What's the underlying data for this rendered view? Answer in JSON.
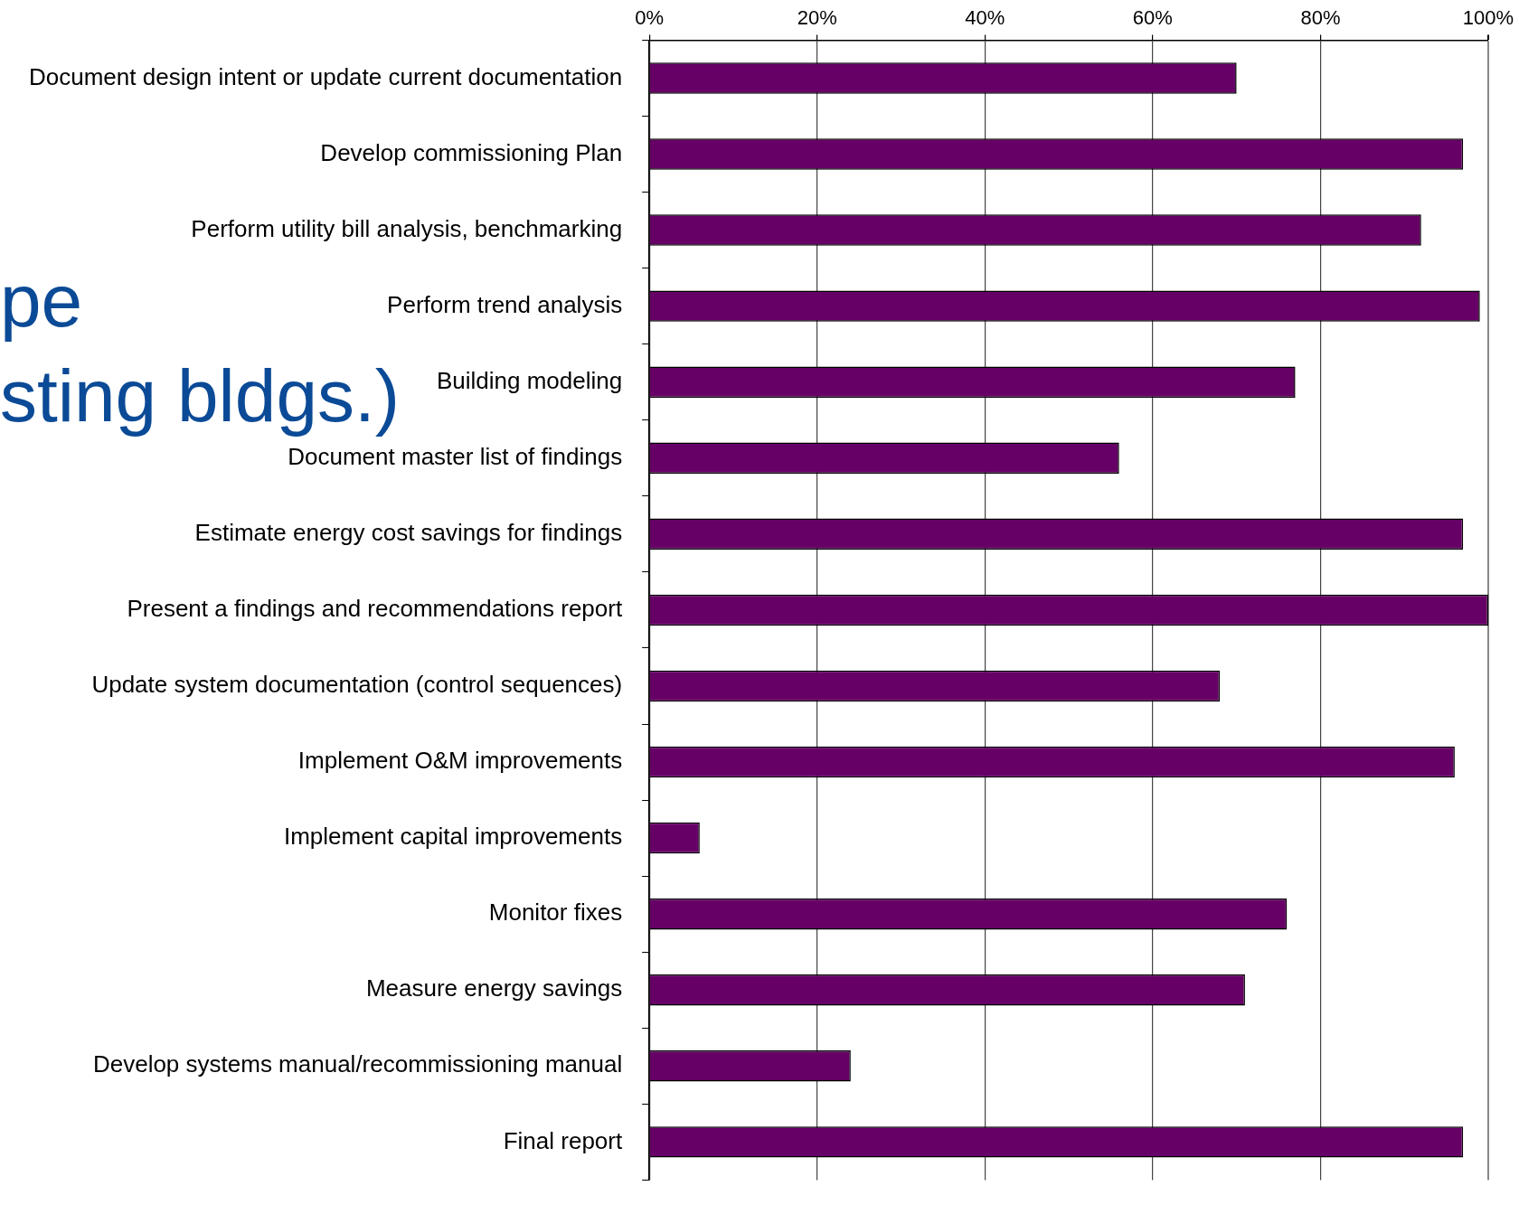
{
  "chart_data": {
    "type": "bar",
    "orientation": "horizontal",
    "categories": [
      "Document design intent or update current documentation",
      "Develop commissioning Plan",
      "Perform utility bill analysis, benchmarking",
      "Perform trend analysis",
      "Building modeling",
      "Document master list of findings",
      "Estimate energy cost savings for findings",
      "Present a findings and recommendations report",
      "Update system documentation (control sequences)",
      "Implement O&M improvements",
      "Implement capital improvements",
      "Monitor fixes",
      "Measure energy savings",
      "Develop systems manual/recommissioning manual",
      "Final report"
    ],
    "values": [
      70,
      97,
      92,
      99,
      77,
      56,
      97,
      100,
      68,
      96,
      6,
      76,
      71,
      24,
      97
    ],
    "color": "#660066",
    "xlim": [
      0,
      100
    ],
    "xticks": [
      {
        "value": 0,
        "label": "0%"
      },
      {
        "value": 20,
        "label": "20%"
      },
      {
        "value": 40,
        "label": "40%"
      },
      {
        "value": 60,
        "label": "60%"
      },
      {
        "value": 80,
        "label": "80%"
      },
      {
        "value": 100,
        "label": "100%"
      }
    ],
    "grid": "x",
    "legend": false,
    "annotations": [
      "pe",
      "sting bldgs.)"
    ]
  }
}
